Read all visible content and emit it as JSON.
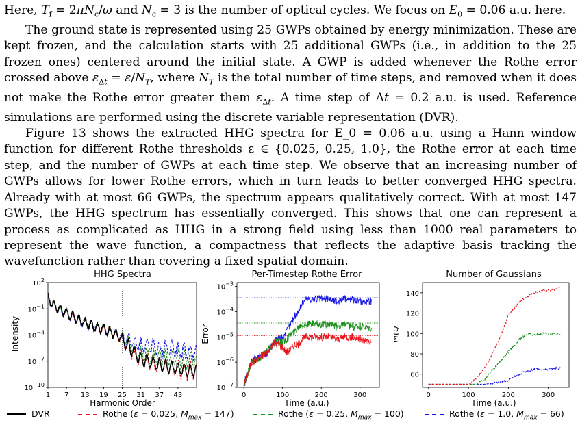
{
  "paragraphs": [
    "Here, T_f = 2πN_c/ω and N_c = 3 is the number of optical cycles. We focus on E_0 = 0.06 a.u. here.",
    "The ground state is represented using 25 GWPs obtained by energy minimization. These are kept frozen, and the calculation starts with 25 additional GWPs (i.e., in addition to the 25 frozen ones) centered around the initial state. A GWP is added whenever the Rothe error crossed above ε_Δt = ε/N_T, where N_T is the total number of time steps, and removed when it does not make the Rothe error greater them ε_Δt. A time step of Δt = 0.2 a.u. is used. Reference simulations are performed using the discrete variable representation (DVR).",
    "Figure 13 shows the extracted HHG spectra for E_0 = 0.06 a.u. using a Hann window function for different Rothe thresholds ε ∈ {0.025, 0.25, 1.0}, the Rothe error at each time step, and the number of GWPs at each time step. We observe that an increasing number of GWPs allows for lower Rothe errors, which in turn leads to better converged HHG spectra. Already with at most 66 GWPs, the spectrum appears qualitatively correct. With at most 147 GWPs, the HHG spectrum has essentially converged. This shows that one can represent a process as complicated as HHG in a strong field using less than 1000 real parameters to represent the wave function, a compactness that reflects the adaptive basis tracking the wavefunction rather than covering a fixed spatial domain."
  ],
  "colors": {
    "dvr": "#000000",
    "red": "#e8161b",
    "green": "#1a8f1a",
    "blue": "#1414e6"
  },
  "legend": [
    {
      "label": "DVR",
      "style": "solid",
      "color": "#000000"
    },
    {
      "label": "Rothe (ε = 0.025, M_max = 147)",
      "style": "dashed",
      "color": "#e8161b"
    },
    {
      "label": "Rothe (ε = 0.25, M_max = 100)",
      "style": "dashed",
      "color": "#1a8f1a"
    },
    {
      "label": "Rothe (ε = 1.0, M_max = 66)",
      "style": "dashed",
      "color": "#1414e6"
    }
  ],
  "chart_data": [
    {
      "type": "line",
      "title": "HHG Spectra",
      "xlabel": "Harmonic Order",
      "ylabel": "Intensity",
      "yscale": "log",
      "xticks": [
        "1",
        "7",
        "13",
        "19",
        "25",
        "31",
        "37",
        "43"
      ],
      "yticks": [
        "10^2",
        "10^-1",
        "10^-4",
        "10^-7",
        "10^-10"
      ],
      "xlim": [
        1,
        49
      ],
      "ylim_exp": [
        -10,
        2
      ],
      "cutoff_harmonic": 25,
      "series": [
        {
          "name": "DVR",
          "x": [
            1,
            3,
            5,
            7,
            9,
            11,
            13,
            15,
            17,
            19,
            21,
            23,
            25,
            27,
            29,
            31,
            35,
            41,
            49
          ],
          "log10_y": [
            0.2,
            -0.6,
            -1.1,
            -1.5,
            -1.9,
            -2.3,
            -2.6,
            -2.9,
            -3.1,
            -3.3,
            -3.6,
            -4.0,
            -4.5,
            -5.3,
            -6.1,
            -6.7,
            -7.2,
            -7.7,
            -8.2
          ]
        },
        {
          "name": "Rothe (ε = 0.025, M_max = 147)",
          "x": [
            1,
            3,
            5,
            7,
            9,
            11,
            13,
            15,
            17,
            19,
            21,
            23,
            25,
            27,
            29,
            31,
            35,
            41,
            49
          ],
          "log10_y": [
            0.2,
            -0.6,
            -1.1,
            -1.5,
            -1.9,
            -2.3,
            -2.6,
            -2.9,
            -3.1,
            -3.3,
            -3.6,
            -4.0,
            -4.5,
            -5.5,
            -6.3,
            -6.7,
            -7.3,
            -7.9,
            -8.3
          ]
        },
        {
          "name": "Rothe (ε = 0.25, M_max = 100)",
          "x": [
            1,
            3,
            5,
            7,
            9,
            11,
            13,
            15,
            17,
            19,
            21,
            23,
            25,
            27,
            29,
            31,
            35,
            41,
            49
          ],
          "log10_y": [
            0.2,
            -0.6,
            -1.1,
            -1.5,
            -1.9,
            -2.3,
            -2.6,
            -2.9,
            -3.1,
            -3.3,
            -3.6,
            -4.0,
            -4.4,
            -5.0,
            -5.8,
            -6.2,
            -6.5,
            -6.7,
            -6.9
          ]
        },
        {
          "name": "Rothe (ε = 1.0, M_max = 66)",
          "x": [
            1,
            3,
            5,
            7,
            9,
            11,
            13,
            15,
            17,
            19,
            21,
            23,
            25,
            27,
            29,
            31,
            35,
            41,
            49
          ],
          "log10_y": [
            0.2,
            -0.6,
            -1.1,
            -1.5,
            -1.9,
            -2.3,
            -2.6,
            -2.9,
            -3.1,
            -3.3,
            -3.6,
            -3.9,
            -4.2,
            -4.6,
            -5.0,
            -5.2,
            -5.4,
            -5.7,
            -6.0
          ]
        }
      ]
    },
    {
      "type": "line",
      "title": "Per-Timestep Rothe Error",
      "xlabel": "Time (a.u.)",
      "ylabel": "Error",
      "yscale": "log",
      "xticks": [
        "0",
        "100",
        "200",
        "300"
      ],
      "yticks": [
        "10^-3",
        "10^-4",
        "10^-5",
        "10^-6",
        "10^-7"
      ],
      "xlim": [
        -18,
        350
      ],
      "ylim_exp": [
        -7,
        -2.85
      ],
      "thresholds": [
        {
          "color": "#1414e6",
          "log10_y": -3.45
        },
        {
          "color": "#1a8f1a",
          "log10_y": -4.45
        },
        {
          "color": "#e8161b",
          "log10_y": -4.95
        }
      ],
      "series": [
        {
          "name": "Rothe (ε = 0.025, M_max = 147)",
          "x": [
            0,
            20,
            40,
            60,
            80,
            100,
            110,
            120,
            130,
            140,
            150,
            160,
            180,
            200,
            220,
            240,
            260,
            280,
            300,
            330
          ],
          "log10_y": [
            -6.9,
            -6.0,
            -5.8,
            -5.6,
            -5.2,
            -5.4,
            -5.6,
            -5.5,
            -5.3,
            -5.3,
            -5.1,
            -5.0,
            -5.0,
            -5.0,
            -5.0,
            -5.1,
            -5.0,
            -5.0,
            -5.1,
            -5.2
          ]
        },
        {
          "name": "Rothe (ε = 0.25, M_max = 100)",
          "x": [
            0,
            20,
            40,
            60,
            80,
            100,
            110,
            120,
            130,
            140,
            150,
            160,
            180,
            200,
            220,
            240,
            260,
            280,
            300,
            330
          ],
          "log10_y": [
            -6.9,
            -6.0,
            -5.8,
            -5.6,
            -5.2,
            -5.2,
            -5.1,
            -4.9,
            -4.8,
            -4.6,
            -4.5,
            -4.5,
            -4.5,
            -4.5,
            -4.5,
            -4.6,
            -4.5,
            -4.6,
            -4.6,
            -4.7
          ]
        },
        {
          "name": "Rothe (ε = 1.0, M_max = 66)",
          "x": [
            0,
            20,
            40,
            60,
            80,
            100,
            110,
            120,
            130,
            140,
            150,
            160,
            180,
            200,
            220,
            240,
            260,
            280,
            300,
            330
          ],
          "log10_y": [
            -6.9,
            -6.0,
            -5.8,
            -5.6,
            -5.2,
            -5.0,
            -4.8,
            -4.5,
            -4.2,
            -4.0,
            -3.7,
            -3.5,
            -3.5,
            -3.5,
            -3.5,
            -3.6,
            -3.5,
            -3.5,
            -3.6,
            -3.6
          ]
        }
      ]
    },
    {
      "type": "line",
      "title": "Number of Gaussians",
      "xlabel": "Time (a.u.)",
      "ylabel": "M(t)",
      "xticks": [
        "0",
        "100",
        "200",
        "300"
      ],
      "yticks": [
        "60",
        "80",
        "100",
        "120",
        "140"
      ],
      "xlim": [
        -15,
        352
      ],
      "ylim": [
        47,
        150
      ],
      "series": [
        {
          "name": "Rothe (ε = 0.025, M_max = 147)",
          "x": [
            0,
            100,
            120,
            150,
            180,
            200,
            230,
            260,
            290,
            320,
            330
          ],
          "y": [
            50,
            50,
            56,
            72,
            96,
            118,
            132,
            140,
            142,
            143,
            147
          ]
        },
        {
          "name": "Rothe (ε = 0.25, M_max = 100)",
          "x": [
            0,
            120,
            140,
            170,
            200,
            230,
            250,
            300,
            330
          ],
          "y": [
            50,
            50,
            55,
            68,
            82,
            95,
            99,
            100,
            100
          ]
        },
        {
          "name": "Rothe (ε = 1.0, M_max = 66)",
          "x": [
            0,
            140,
            170,
            200,
            220,
            240,
            270,
            300,
            330
          ],
          "y": [
            50,
            50,
            52,
            54,
            58,
            62,
            65,
            65,
            66
          ]
        }
      ]
    }
  ]
}
